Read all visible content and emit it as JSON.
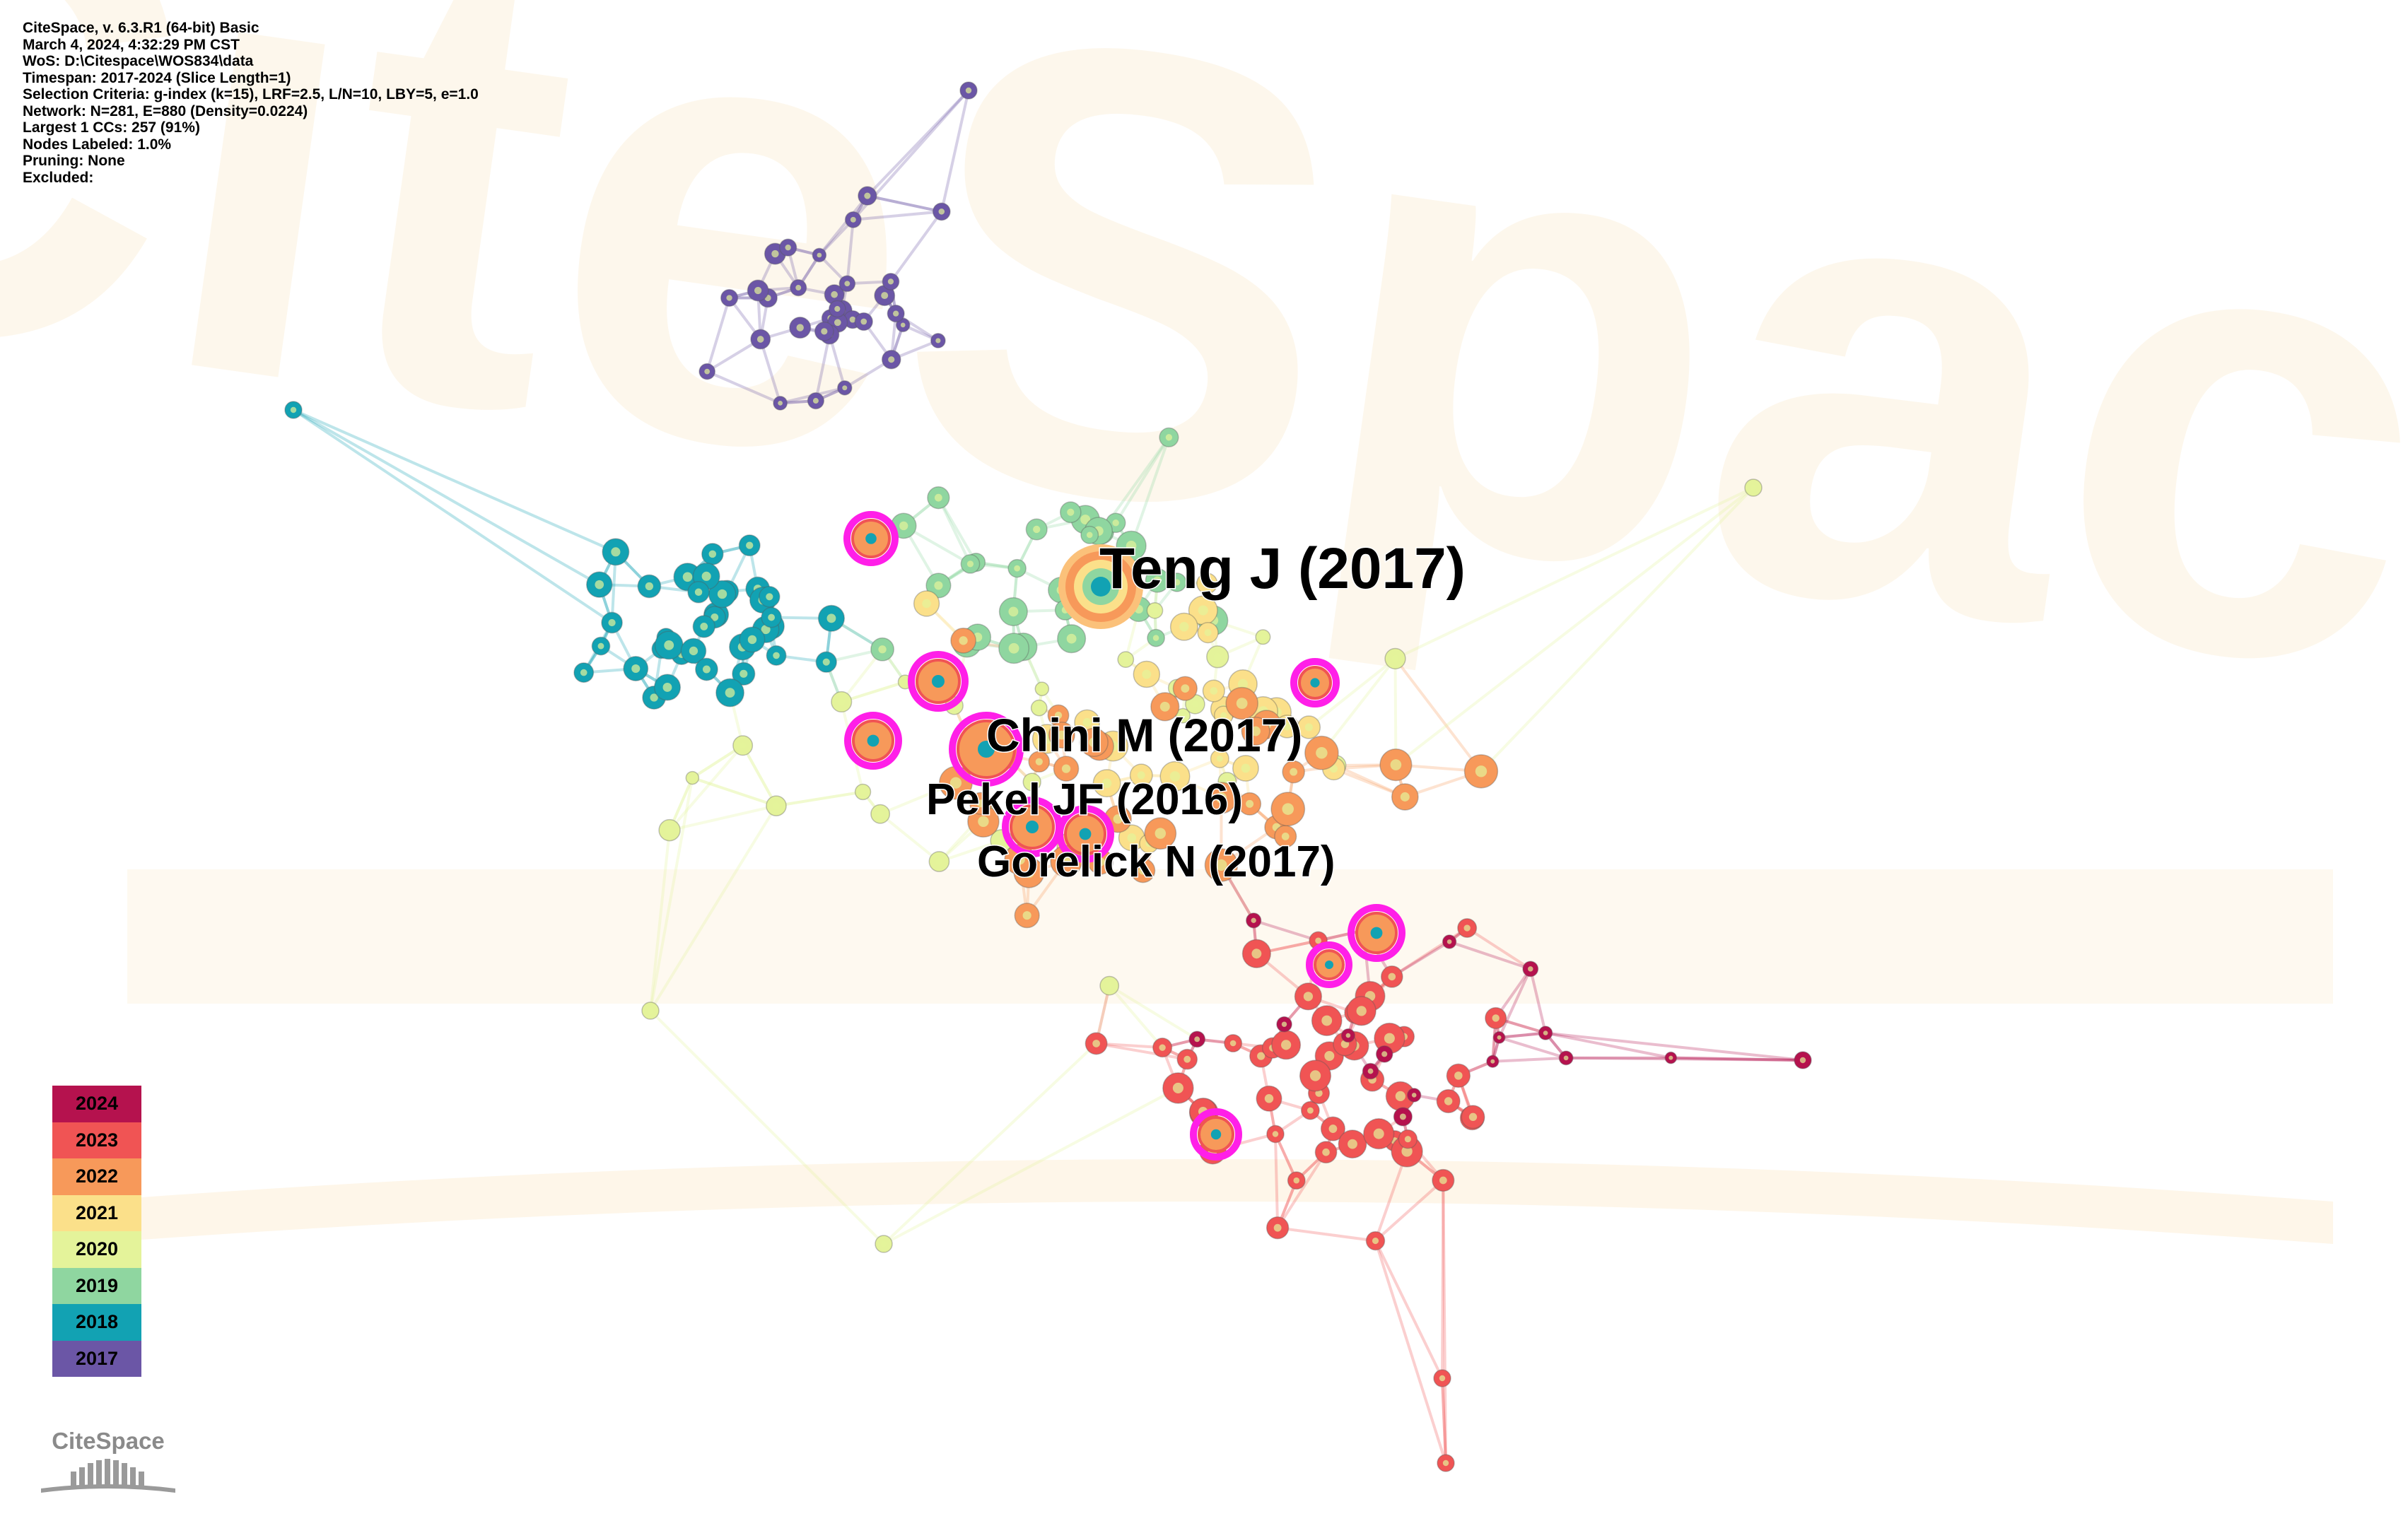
{
  "info_lines": [
    "CiteSpace, v. 6.3.R1 (64-bit) Basic",
    "March 4, 2024, 4:32:29 PM CST",
    "WoS: D:\\Citespace\\WOS834\\data",
    "Timespan: 2017-2024 (Slice Length=1)",
    "Selection Criteria: g-index (k=15), LRF=2.5, L/N=10, LBY=5, e=1.0",
    "Network: N=281, E=880 (Density=0.0224)",
    "Largest 1 CCs: 257 (91%)",
    "Nodes Labeled: 1.0%",
    "Pruning: None",
    "Excluded:"
  ],
  "watermark": "CiteSpace",
  "logo_text": "CiteSpace",
  "legend": [
    {
      "year": "2024",
      "color": "#b5124e"
    },
    {
      "year": "2023",
      "color": "#f05454"
    },
    {
      "year": "2022",
      "color": "#f7995a"
    },
    {
      "year": "2021",
      "color": "#fbe08a"
    },
    {
      "year": "2020",
      "color": "#e4f39a"
    },
    {
      "year": "2019",
      "color": "#8fd6a0"
    },
    {
      "year": "2018",
      "color": "#12a2b3"
    },
    {
      "year": "2017",
      "color": "#6b56a6"
    }
  ],
  "highlight_color": "#ff1fe8",
  "node_labels": [
    {
      "text": "Teng J (2017)",
      "year": "2017"
    },
    {
      "text": "Chini M (2017)",
      "year": "2017"
    },
    {
      "text": "Pekel JF (2016)",
      "year": "2016"
    },
    {
      "text": "Gorelick N (2017)",
      "year": "2017"
    }
  ]
}
